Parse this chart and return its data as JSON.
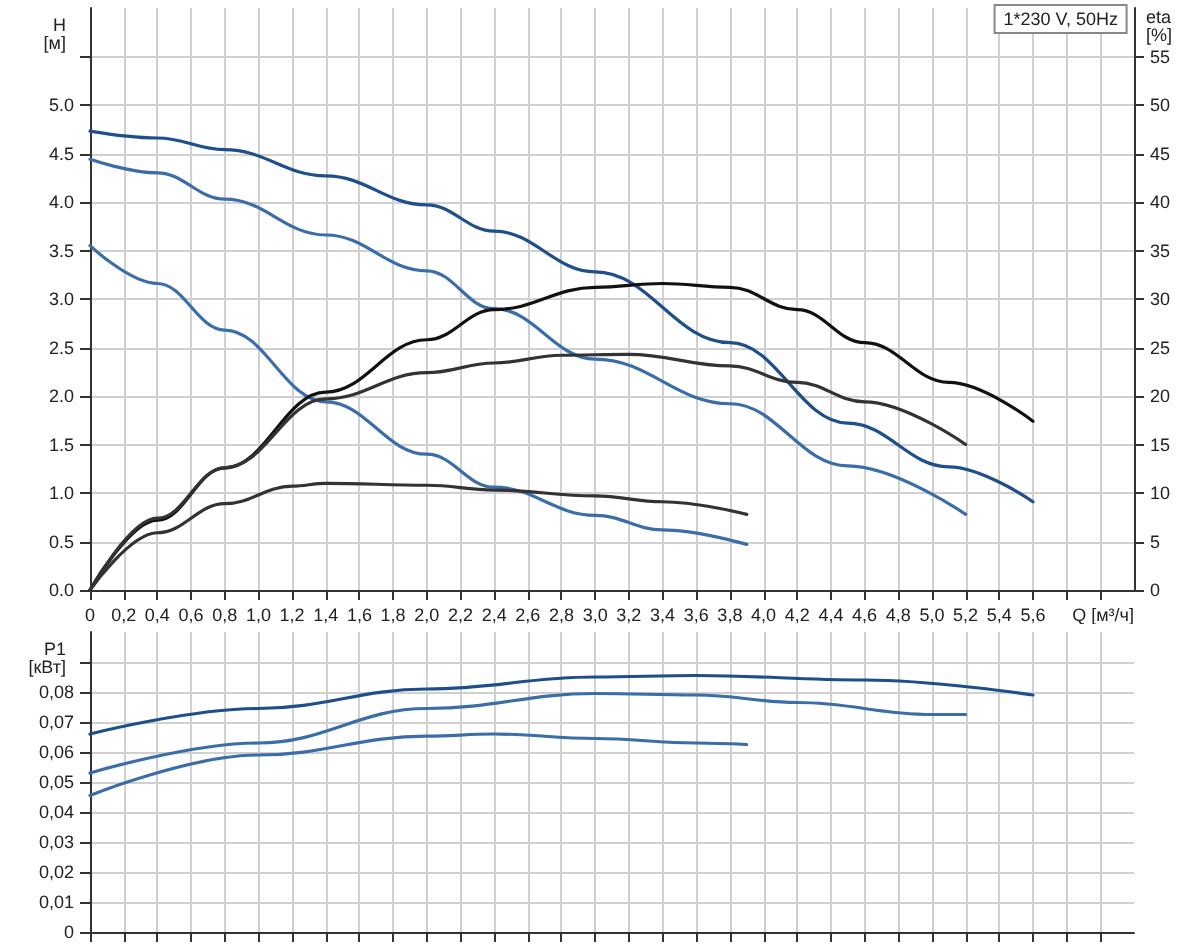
{
  "chart_data": [
    {
      "type": "line",
      "title": "1*230 V, 50Hz",
      "xlabel": "Q [м³/ч]",
      "ylabel": "H [м]",
      "y2label": "eta [%]",
      "grid": true,
      "marker": "none",
      "line_style": "solid",
      "xlim": [
        0,
        6.2
      ],
      "xticks": [
        {
          "value": 0,
          "label": "0"
        },
        {
          "value": 0.2,
          "label": "0,2"
        },
        {
          "value": 0.4,
          "label": "0,4"
        },
        {
          "value": 0.6,
          "label": "0,6"
        },
        {
          "value": 0.8,
          "label": "0,8"
        },
        {
          "value": 1.0,
          "label": "1,0"
        },
        {
          "value": 1.2,
          "label": "1,2"
        },
        {
          "value": 1.4,
          "label": "1,4"
        },
        {
          "value": 1.6,
          "label": "1,6"
        },
        {
          "value": 1.8,
          "label": "1,8"
        },
        {
          "value": 2.0,
          "label": "2,0"
        },
        {
          "value": 2.2,
          "label": "2,2"
        },
        {
          "value": 2.4,
          "label": "2,4"
        },
        {
          "value": 2.6,
          "label": "2,6"
        },
        {
          "value": 2.8,
          "label": "2,8"
        },
        {
          "value": 3.0,
          "label": "3,0"
        },
        {
          "value": 3.2,
          "label": "3,2"
        },
        {
          "value": 3.4,
          "label": "3,4"
        },
        {
          "value": 3.6,
          "label": "3,6"
        },
        {
          "value": 3.8,
          "label": "3,8"
        },
        {
          "value": 4.0,
          "label": "4,0"
        },
        {
          "value": 4.2,
          "label": "4,2"
        },
        {
          "value": 4.4,
          "label": "4,4"
        },
        {
          "value": 4.6,
          "label": "4,6"
        },
        {
          "value": 4.8,
          "label": "4,8"
        },
        {
          "value": 5.0,
          "label": "5,0"
        },
        {
          "value": 5.2,
          "label": "5,2"
        },
        {
          "value": 5.4,
          "label": "5,4"
        },
        {
          "value": 5.6,
          "label": "5,6"
        },
        {
          "value": 5.8,
          "label": null
        },
        {
          "value": 6.0,
          "label": null
        }
      ],
      "ylim": [
        0,
        6
      ],
      "yticks": [
        {
          "value": 0,
          "label": "0.0"
        },
        {
          "value": 0.5,
          "label": "0.5"
        },
        {
          "value": 1,
          "label": "1.0"
        },
        {
          "value": 1.5,
          "label": "1.5"
        },
        {
          "value": 2,
          "label": "2.0"
        },
        {
          "value": 2.5,
          "label": "2.5"
        },
        {
          "value": 3,
          "label": "3.0"
        },
        {
          "value": 3.5,
          "label": "3.5"
        },
        {
          "value": 4,
          "label": "4.0"
        },
        {
          "value": 4.5,
          "label": "4.5"
        },
        {
          "value": 5,
          "label": "5.0"
        },
        {
          "value": 5.5,
          "label": null
        }
      ],
      "y2lim": [
        0,
        60
      ],
      "y2ticks": [
        0,
        5,
        10,
        15,
        20,
        25,
        30,
        35,
        40,
        45,
        50,
        55
      ],
      "series": [
        {
          "color": "#1f4f8a",
          "x": [
            0,
            0.4,
            0.8,
            1.4,
            2.0,
            2.4,
            3.0,
            3.8,
            4.5,
            5.1,
            5.6
          ],
          "values": [
            4.73,
            4.66,
            4.54,
            4.27,
            3.97,
            3.7,
            3.28,
            2.55,
            1.72,
            1.27,
            0.91
          ]
        },
        {
          "color": "#3b6ea8",
          "x": [
            0,
            0.4,
            0.8,
            1.4,
            2.0,
            2.4,
            3.0,
            3.8,
            4.5,
            5.2
          ],
          "values": [
            4.44,
            4.3,
            4.03,
            3.66,
            3.29,
            2.9,
            2.38,
            1.92,
            1.28,
            0.78
          ]
        },
        {
          "color": "#3b6ea8",
          "x": [
            0,
            0.4,
            0.8,
            1.4,
            2.0,
            2.4,
            3.0,
            3.4,
            3.9
          ],
          "values": [
            3.55,
            3.16,
            2.68,
            1.94,
            1.4,
            1.06,
            0.77,
            0.62,
            0.47
          ]
        },
        {
          "color": "#111111",
          "axis": "y2",
          "x": [
            0,
            0.4,
            0.8,
            1.4,
            2.0,
            2.4,
            3.0,
            3.4,
            3.8,
            4.2,
            4.6,
            5.1,
            5.6
          ],
          "values": [
            0,
            7.2,
            12.6,
            20.4,
            25.8,
            28.9,
            31.2,
            31.6,
            31.2,
            28.9,
            25.5,
            21.4,
            17.4
          ]
        },
        {
          "color": "#333333",
          "axis": "y2",
          "x": [
            0,
            0.4,
            0.8,
            1.4,
            2.0,
            2.4,
            2.8,
            3.2,
            3.8,
            4.2,
            4.6,
            5.2
          ],
          "values": [
            0,
            7.4,
            12.6,
            19.7,
            22.4,
            23.4,
            24.2,
            24.3,
            23.1,
            21.4,
            19.4,
            15.0
          ]
        },
        {
          "color": "#333333",
          "axis": "y2",
          "x": [
            0,
            0.4,
            0.8,
            1.2,
            1.4,
            2.0,
            2.4,
            3.0,
            3.4,
            3.9
          ],
          "values": [
            0,
            5.9,
            8.9,
            10.7,
            11.0,
            10.8,
            10.3,
            9.7,
            9.1,
            7.8
          ]
        }
      ]
    },
    {
      "type": "line",
      "ylabel": "P1 [кВт]",
      "grid": true,
      "marker": "none",
      "line_style": "solid",
      "tick_labels": "y",
      "xlim": [
        0,
        6.2
      ],
      "xticks": [
        0,
        0.2,
        0.4,
        0.6,
        0.8,
        1.0,
        1.2,
        1.4,
        1.6,
        1.8,
        2.0,
        2.2,
        2.4,
        2.6,
        2.8,
        3.0,
        3.2,
        3.4,
        3.6,
        3.8,
        4.0,
        4.2,
        4.4,
        4.6,
        4.8,
        5.0,
        5.2,
        5.4,
        5.6,
        5.8,
        6.0
      ],
      "ylim": [
        0,
        0.1
      ],
      "yticks": [
        0,
        {
          "value": 0.01,
          "label": "0,01"
        },
        {
          "value": 0.02,
          "label": "0,02"
        },
        {
          "value": 0.03,
          "label": "0,03"
        },
        {
          "value": 0.04,
          "label": "0,04"
        },
        {
          "value": 0.05,
          "label": "0,05"
        },
        {
          "value": 0.06,
          "label": "0,06"
        },
        {
          "value": 0.07,
          "label": "0,07"
        },
        {
          "value": 0.08,
          "label": "0,08"
        },
        {
          "value": 0.09,
          "label": null
        }
      ],
      "series": [
        {
          "color": "#1f4f8a",
          "x": [
            0,
            1.0,
            2.0,
            3.0,
            3.6,
            4.6,
            5.6
          ],
          "values": [
            0.066,
            0.0745,
            0.081,
            0.085,
            0.0855,
            0.084,
            0.079
          ]
        },
        {
          "color": "#3b6ea8",
          "x": [
            0,
            1.0,
            2.0,
            3.0,
            3.6,
            4.2,
            5.0,
            5.2
          ],
          "values": [
            0.053,
            0.063,
            0.0745,
            0.0795,
            0.079,
            0.0765,
            0.0725,
            0.0725
          ]
        },
        {
          "color": "#3b6ea8",
          "x": [
            0,
            1.0,
            2.0,
            2.4,
            3.0,
            3.6,
            3.9
          ],
          "values": [
            0.0455,
            0.059,
            0.0653,
            0.066,
            0.0645,
            0.063,
            0.0625
          ]
        }
      ]
    }
  ]
}
